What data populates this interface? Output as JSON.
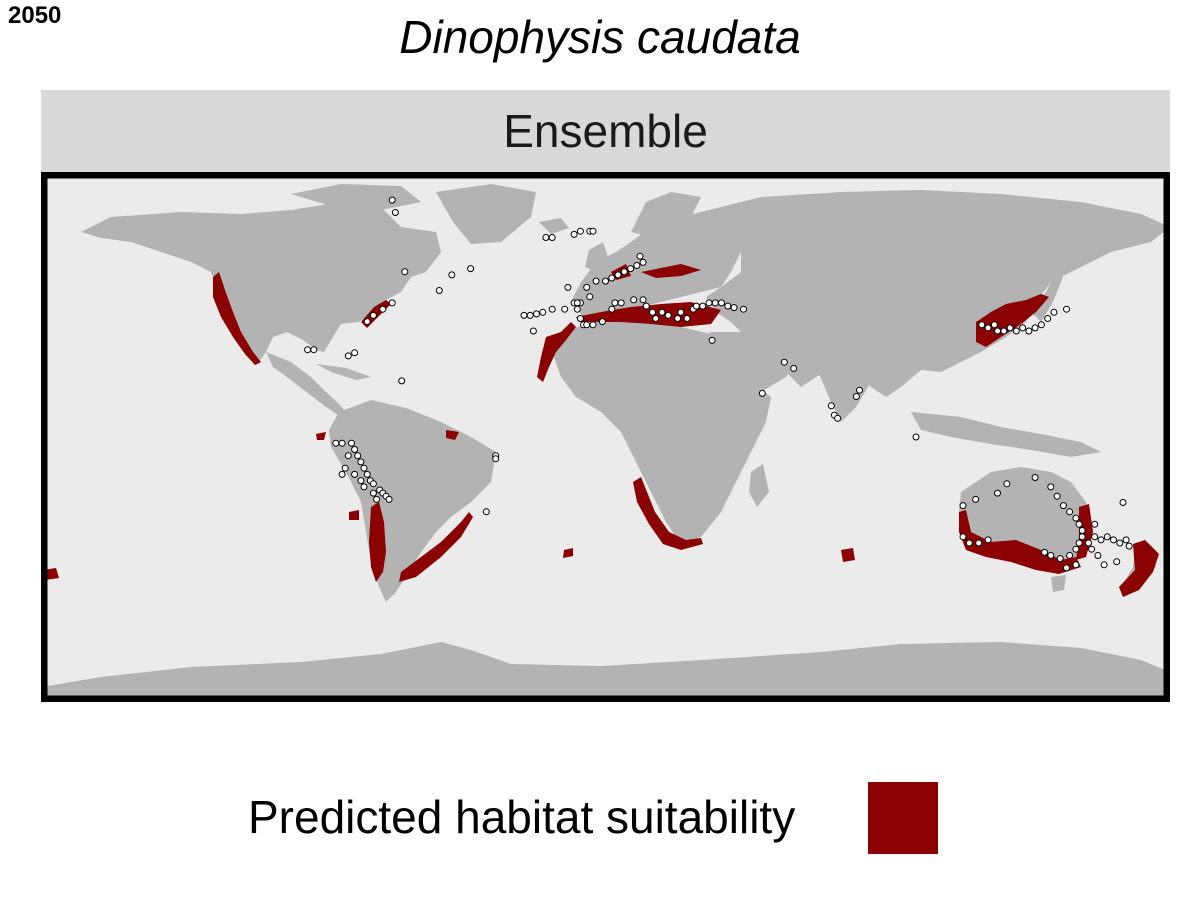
{
  "header": {
    "year": "2050",
    "title": "Dinophysis caudata"
  },
  "panel": {
    "label": "Ensemble"
  },
  "legend": {
    "label": "Predicted habitat suitability",
    "color": "#8b0000"
  },
  "colors": {
    "ocean": "#ebebeb",
    "land": "#b3b3b3",
    "suitable": "#8b0000",
    "frame": "#000000",
    "strip": "#d9d9d9",
    "point_fill": "#ffffff",
    "point_stroke": "#000000"
  },
  "map": {
    "projection": "equirectangular",
    "lon_range": [
      -180,
      180
    ],
    "lat_range": [
      -85,
      85
    ],
    "occurrences": [
      {
        "lon": -68,
        "lat": 76
      },
      {
        "lon": -67,
        "lat": 72
      },
      {
        "lon": -64,
        "lat": 53
      },
      {
        "lon": -53,
        "lat": 47
      },
      {
        "lon": -49,
        "lat": 52
      },
      {
        "lon": -43,
        "lat": 54
      },
      {
        "lon": -26,
        "lat": 39
      },
      {
        "lon": -24,
        "lat": 39
      },
      {
        "lon": -22,
        "lat": 39.5
      },
      {
        "lon": -20,
        "lat": 40
      },
      {
        "lon": -17,
        "lat": 41
      },
      {
        "lon": -13,
        "lat": 41
      },
      {
        "lon": -10,
        "lat": 43
      },
      {
        "lon": -23,
        "lat": 34
      },
      {
        "lon": -6,
        "lat": 48
      },
      {
        "lon": -5,
        "lat": 45
      },
      {
        "lon": -8,
        "lat": 43
      },
      {
        "lon": -12,
        "lat": 48
      },
      {
        "lon": -19,
        "lat": 64
      },
      {
        "lon": -17,
        "lat": 64
      },
      {
        "lon": -10,
        "lat": 65
      },
      {
        "lon": -8,
        "lat": 66
      },
      {
        "lon": -5,
        "lat": 66
      },
      {
        "lon": -4,
        "lat": 66
      },
      {
        "lon": -9,
        "lat": 43
      },
      {
        "lon": -9,
        "lat": 41
      },
      {
        "lon": -8,
        "lat": 38
      },
      {
        "lon": -7,
        "lat": 36
      },
      {
        "lon": -6,
        "lat": 36
      },
      {
        "lon": -4,
        "lat": 36
      },
      {
        "lon": -1,
        "lat": 37
      },
      {
        "lon": 2,
        "lat": 41
      },
      {
        "lon": 3,
        "lat": 43
      },
      {
        "lon": 5,
        "lat": 43
      },
      {
        "lon": 9,
        "lat": 44
      },
      {
        "lon": 12,
        "lat": 44
      },
      {
        "lon": 13,
        "lat": 42
      },
      {
        "lon": 15,
        "lat": 40
      },
      {
        "lon": 16,
        "lat": 38
      },
      {
        "lon": 18,
        "lat": 40
      },
      {
        "lon": 20,
        "lat": 39
      },
      {
        "lon": 23,
        "lat": 38
      },
      {
        "lon": 24,
        "lat": 40
      },
      {
        "lon": 26,
        "lat": 38
      },
      {
        "lon": 28,
        "lat": 41
      },
      {
        "lon": 29,
        "lat": 42
      },
      {
        "lon": 31,
        "lat": 42
      },
      {
        "lon": 33,
        "lat": 43
      },
      {
        "lon": 35,
        "lat": 43
      },
      {
        "lon": 37,
        "lat": 43
      },
      {
        "lon": 39,
        "lat": 42
      },
      {
        "lon": 41,
        "lat": 41.5
      },
      {
        "lon": 44,
        "lat": 41
      },
      {
        "lon": 0,
        "lat": 50
      },
      {
        "lon": 2,
        "lat": 51
      },
      {
        "lon": 4,
        "lat": 52
      },
      {
        "lon": 6,
        "lat": 53
      },
      {
        "lon": 8,
        "lat": 54
      },
      {
        "lon": 10,
        "lat": 55
      },
      {
        "lon": 12,
        "lat": 56
      },
      {
        "lon": 11,
        "lat": 58
      },
      {
        "lon": -3,
        "lat": 50
      },
      {
        "lon": 34,
        "lat": 31
      },
      {
        "lon": -80,
        "lat": 27
      },
      {
        "lon": -82,
        "lat": 26
      },
      {
        "lon": -76,
        "lat": 37
      },
      {
        "lon": -74,
        "lat": 39
      },
      {
        "lon": -71,
        "lat": 41
      },
      {
        "lon": -68,
        "lat": 43
      },
      {
        "lon": -95,
        "lat": 28
      },
      {
        "lon": -93,
        "lat": 28
      },
      {
        "lon": -65,
        "lat": 18
      },
      {
        "lon": -81,
        "lat": -2
      },
      {
        "lon": -80,
        "lat": -4
      },
      {
        "lon": -79,
        "lat": -6
      },
      {
        "lon": -78,
        "lat": -8
      },
      {
        "lon": -77,
        "lat": -10
      },
      {
        "lon": -76,
        "lat": -12
      },
      {
        "lon": -75,
        "lat": -14
      },
      {
        "lon": -74,
        "lat": -15
      },
      {
        "lon": -72,
        "lat": -17
      },
      {
        "lon": -71,
        "lat": -18
      },
      {
        "lon": -70,
        "lat": -19
      },
      {
        "lon": -69,
        "lat": -20
      },
      {
        "lon": -84,
        "lat": -2
      },
      {
        "lon": -86,
        "lat": -2
      },
      {
        "lon": -82,
        "lat": -6
      },
      {
        "lon": -83,
        "lat": -10
      },
      {
        "lon": -84,
        "lat": -12
      },
      {
        "lon": -80,
        "lat": -12
      },
      {
        "lon": -78,
        "lat": -14
      },
      {
        "lon": -77,
        "lat": -16
      },
      {
        "lon": -74,
        "lat": -18
      },
      {
        "lon": -73,
        "lat": -20
      },
      {
        "lon": -35,
        "lat": -6
      },
      {
        "lon": -35,
        "lat": -7
      },
      {
        "lon": -38,
        "lat": -24
      },
      {
        "lon": 50,
        "lat": 14
      },
      {
        "lon": 72,
        "lat": 10
      },
      {
        "lon": 73,
        "lat": 7
      },
      {
        "lon": 74,
        "lat": 6
      },
      {
        "lon": 80,
        "lat": 13
      },
      {
        "lon": 81,
        "lat": 15
      },
      {
        "lon": 99,
        "lat": 0
      },
      {
        "lon": 57,
        "lat": 24
      },
      {
        "lon": 60,
        "lat": 22
      },
      {
        "lon": 120,
        "lat": 36
      },
      {
        "lon": 122,
        "lat": 35
      },
      {
        "lon": 124,
        "lat": 36
      },
      {
        "lon": 125,
        "lat": 34
      },
      {
        "lon": 127,
        "lat": 34
      },
      {
        "lon": 129,
        "lat": 35
      },
      {
        "lon": 131,
        "lat": 34
      },
      {
        "lon": 133,
        "lat": 35
      },
      {
        "lon": 135,
        "lat": 34
      },
      {
        "lon": 137,
        "lat": 35
      },
      {
        "lon": 139,
        "lat": 36
      },
      {
        "lon": 141,
        "lat": 38
      },
      {
        "lon": 143,
        "lat": 40
      },
      {
        "lon": 147,
        "lat": 41
      },
      {
        "lon": 118,
        "lat": -20
      },
      {
        "lon": 114,
        "lat": -22
      },
      {
        "lon": 114,
        "lat": -32
      },
      {
        "lon": 116,
        "lat": -34
      },
      {
        "lon": 119,
        "lat": -34
      },
      {
        "lon": 122,
        "lat": -33
      },
      {
        "lon": 125,
        "lat": -18
      },
      {
        "lon": 128,
        "lat": -15
      },
      {
        "lon": 137,
        "lat": -13
      },
      {
        "lon": 142,
        "lat": -16
      },
      {
        "lon": 144,
        "lat": -19
      },
      {
        "lon": 146,
        "lat": -22
      },
      {
        "lon": 148,
        "lat": -24
      },
      {
        "lon": 150,
        "lat": -26
      },
      {
        "lon": 151,
        "lat": -28
      },
      {
        "lon": 152,
        "lat": -30
      },
      {
        "lon": 152,
        "lat": -32
      },
      {
        "lon": 151,
        "lat": -34
      },
      {
        "lon": 150,
        "lat": -36
      },
      {
        "lon": 148,
        "lat": -38
      },
      {
        "lon": 145,
        "lat": -39
      },
      {
        "lon": 142,
        "lat": -38
      },
      {
        "lon": 140,
        "lat": -37
      },
      {
        "lon": 147,
        "lat": -42
      },
      {
        "lon": 150,
        "lat": -41
      },
      {
        "lon": 154,
        "lat": -34
      },
      {
        "lon": 156,
        "lat": -32
      },
      {
        "lon": 158,
        "lat": -33
      },
      {
        "lon": 160,
        "lat": -32
      },
      {
        "lon": 162,
        "lat": -33
      },
      {
        "lon": 164,
        "lat": -34
      },
      {
        "lon": 166,
        "lat": -33
      },
      {
        "lon": 167,
        "lat": -35
      },
      {
        "lon": 155,
        "lat": -36
      },
      {
        "lon": 157,
        "lat": -38
      },
      {
        "lon": 159,
        "lat": -41
      },
      {
        "lon": 163,
        "lat": -40
      },
      {
        "lon": 165,
        "lat": -21
      },
      {
        "lon": 156,
        "lat": -28
      }
    ]
  }
}
